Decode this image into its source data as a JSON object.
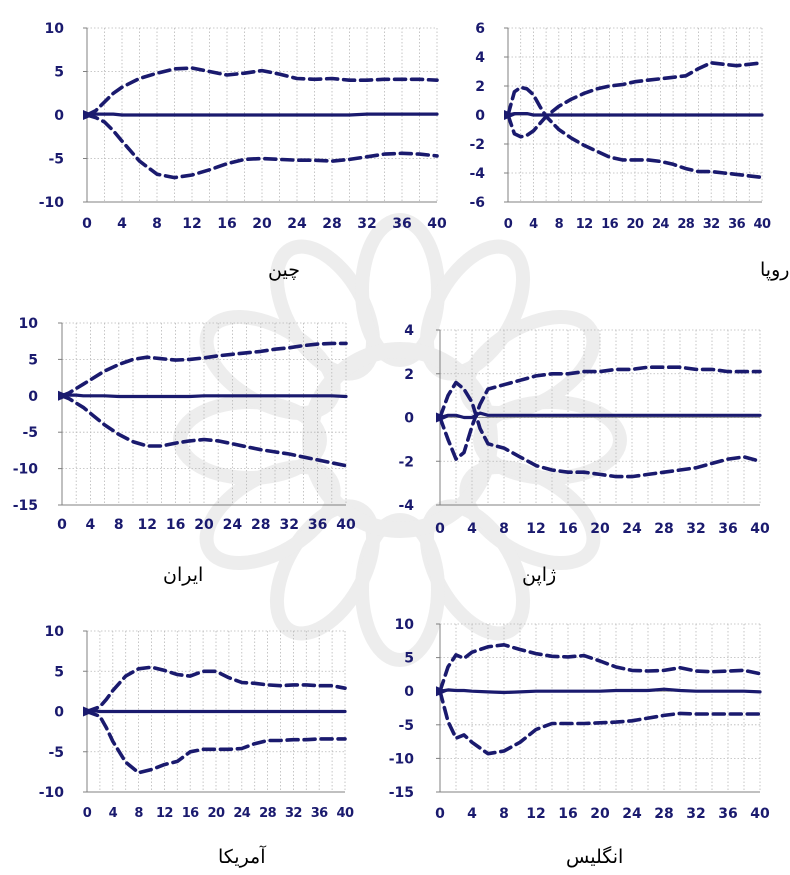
{
  "chart_data": [
    {
      "type": "line",
      "caption": "چین",
      "x": [
        0,
        1,
        2,
        3,
        4,
        6,
        8,
        10,
        12,
        14,
        16,
        18,
        20,
        22,
        24,
        26,
        28,
        30,
        32,
        34,
        36,
        38,
        40
      ],
      "xticks": [
        "0",
        "4",
        "8",
        "12",
        "16",
        "20",
        "24",
        "28",
        "32",
        "36",
        "40"
      ],
      "yticks": [
        "10",
        "5",
        "0",
        "-5",
        "-10"
      ],
      "ylim": [
        -10,
        10
      ],
      "xlim": [
        0,
        40
      ],
      "series": [
        {
          "style": "dashed",
          "values": [
            0,
            0.5,
            1.5,
            2.5,
            3.2,
            4.2,
            4.8,
            5.3,
            5.4,
            5.0,
            4.6,
            4.8,
            5.1,
            4.7,
            4.2,
            4.1,
            4.2,
            4.0,
            4.0,
            4.1,
            4.1,
            4.1,
            4.0
          ]
        },
        {
          "style": "solid",
          "values": [
            0,
            0.1,
            0.1,
            0.1,
            0.0,
            0.0,
            0.0,
            0.0,
            0.0,
            0.0,
            0.0,
            0.0,
            0.0,
            0.0,
            0.0,
            0.0,
            0.0,
            0.0,
            0.1,
            0.1,
            0.1,
            0.1,
            0.1
          ]
        },
        {
          "style": "dashed",
          "values": [
            0,
            -0.3,
            -0.8,
            -1.8,
            -3.0,
            -5.3,
            -6.8,
            -7.2,
            -6.9,
            -6.3,
            -5.6,
            -5.1,
            -5.0,
            -5.1,
            -5.2,
            -5.2,
            -5.3,
            -5.1,
            -4.8,
            -4.5,
            -4.4,
            -4.5,
            -4.7
          ]
        }
      ]
    },
    {
      "type": "line",
      "caption": "اتحادیه اروپا",
      "x": [
        0,
        1,
        2,
        3,
        4,
        5,
        6,
        8,
        10,
        12,
        14,
        16,
        18,
        20,
        22,
        24,
        26,
        28,
        30,
        32,
        34,
        36,
        38,
        40
      ],
      "xticks": [
        "0",
        "4",
        "8",
        "12",
        "16",
        "20",
        "24",
        "28",
        "32",
        "36",
        "40"
      ],
      "yticks": [
        "6",
        "4",
        "2",
        "0",
        "-2",
        "-4",
        "-6"
      ],
      "ylim": [
        -6,
        6
      ],
      "xlim": [
        0,
        40
      ],
      "series": [
        {
          "style": "dashed",
          "values": [
            0,
            1.6,
            1.9,
            1.8,
            1.4,
            0.6,
            -0.1,
            -1.0,
            -1.6,
            -2.1,
            -2.5,
            -2.9,
            -3.1,
            -3.1,
            -3.1,
            -3.2,
            -3.4,
            -3.7,
            -3.9,
            -3.9,
            -4.0,
            -4.1,
            -4.2,
            -4.3
          ]
        },
        {
          "style": "solid",
          "values": [
            0,
            0.1,
            0.1,
            0.1,
            0.0,
            0.0,
            0.0,
            0.0,
            0.0,
            0.0,
            0.0,
            0.0,
            0.0,
            0.0,
            0.0,
            0.0,
            0.0,
            0.0,
            0.0,
            0.0,
            0.0,
            0.0,
            0.0,
            0.0
          ]
        },
        {
          "style": "dashed",
          "values": [
            0,
            -1.3,
            -1.5,
            -1.4,
            -1.1,
            -0.6,
            -0.1,
            0.6,
            1.1,
            1.5,
            1.8,
            2.0,
            2.1,
            2.3,
            2.4,
            2.5,
            2.6,
            2.7,
            3.2,
            3.6,
            3.5,
            3.4,
            3.5,
            3.6
          ]
        }
      ]
    },
    {
      "type": "line",
      "caption": "ایران",
      "x": [
        0,
        1,
        2,
        3,
        4,
        6,
        8,
        10,
        12,
        14,
        16,
        18,
        20,
        22,
        24,
        26,
        28,
        30,
        32,
        34,
        36,
        38,
        40
      ],
      "xticks": [
        "0",
        "4",
        "8",
        "12",
        "16",
        "20",
        "24",
        "28",
        "32",
        "36",
        "40"
      ],
      "yticks": [
        "10",
        "5",
        "0",
        "-5",
        "-10",
        "-15"
      ],
      "ylim": [
        -15,
        10
      ],
      "xlim": [
        0,
        40
      ],
      "series": [
        {
          "style": "dashed",
          "values": [
            0,
            0.4,
            1.0,
            1.6,
            2.2,
            3.4,
            4.3,
            5.0,
            5.3,
            5.1,
            4.9,
            5.0,
            5.2,
            5.5,
            5.7,
            5.9,
            6.1,
            6.4,
            6.6,
            6.9,
            7.1,
            7.2,
            7.2
          ]
        },
        {
          "style": "solid",
          "values": [
            0,
            0.1,
            0.1,
            0.0,
            0.0,
            0.0,
            -0.1,
            -0.1,
            -0.1,
            -0.1,
            -0.1,
            -0.1,
            0.0,
            0.0,
            0.0,
            0.0,
            0.0,
            0.0,
            0.0,
            0.0,
            0.0,
            0.0,
            -0.1
          ]
        },
        {
          "style": "dashed",
          "values": [
            0,
            -0.4,
            -1.0,
            -1.6,
            -2.4,
            -4.0,
            -5.3,
            -6.3,
            -6.9,
            -6.9,
            -6.5,
            -6.2,
            -6.0,
            -6.2,
            -6.6,
            -7.0,
            -7.4,
            -7.7,
            -8.0,
            -8.4,
            -8.8,
            -9.2,
            -9.6
          ]
        }
      ]
    },
    {
      "type": "line",
      "caption": "ژاپن",
      "x": [
        0,
        1,
        2,
        3,
        4,
        5,
        6,
        8,
        10,
        12,
        14,
        16,
        18,
        20,
        22,
        24,
        26,
        28,
        30,
        32,
        34,
        36,
        38,
        40
      ],
      "xticks": [
        "0",
        "4",
        "8",
        "12",
        "16",
        "20",
        "24",
        "28",
        "32",
        "36",
        "40"
      ],
      "yticks": [
        "4",
        "2",
        "0",
        "-2",
        "-4"
      ],
      "ylim": [
        -4,
        4
      ],
      "xlim": [
        0,
        40
      ],
      "series": [
        {
          "style": "dashed",
          "values": [
            0,
            1.0,
            1.6,
            1.3,
            0.7,
            -0.5,
            -1.2,
            -1.4,
            -1.8,
            -2.2,
            -2.4,
            -2.5,
            -2.5,
            -2.6,
            -2.7,
            -2.7,
            -2.6,
            -2.5,
            -2.4,
            -2.3,
            -2.1,
            -1.9,
            -1.8,
            -2.0
          ]
        },
        {
          "style": "solid",
          "values": [
            0,
            0.1,
            0.1,
            0.0,
            0.0,
            0.2,
            0.1,
            0.1,
            0.1,
            0.1,
            0.1,
            0.1,
            0.1,
            0.1,
            0.1,
            0.1,
            0.1,
            0.1,
            0.1,
            0.1,
            0.1,
            0.1,
            0.1,
            0.1
          ]
        },
        {
          "style": "dashed",
          "values": [
            0,
            -1.0,
            -1.9,
            -1.6,
            -0.4,
            0.6,
            1.3,
            1.5,
            1.7,
            1.9,
            2.0,
            2.0,
            2.1,
            2.1,
            2.2,
            2.2,
            2.3,
            2.3,
            2.3,
            2.2,
            2.2,
            2.1,
            2.1,
            2.1
          ]
        }
      ]
    },
    {
      "type": "line",
      "caption": "آمریکا",
      "x": [
        0,
        1,
        2,
        3,
        4,
        6,
        8,
        10,
        12,
        14,
        16,
        18,
        20,
        22,
        24,
        26,
        28,
        30,
        32,
        34,
        36,
        38,
        40
      ],
      "xticks": [
        "0",
        "4",
        "8",
        "12",
        "16",
        "20",
        "24",
        "28",
        "32",
        "36",
        "40"
      ],
      "yticks": [
        "10",
        "5",
        "0",
        "-5",
        "-10"
      ],
      "ylim": [
        -10,
        10
      ],
      "xlim": [
        0,
        40
      ],
      "series": [
        {
          "style": "dashed",
          "values": [
            0,
            0.3,
            0.6,
            1.5,
            2.6,
            4.4,
            5.3,
            5.5,
            5.1,
            4.6,
            4.4,
            5.0,
            5.0,
            4.2,
            3.6,
            3.5,
            3.3,
            3.2,
            3.3,
            3.3,
            3.2,
            3.2,
            2.9
          ]
        },
        {
          "style": "solid",
          "values": [
            0,
            0.1,
            0.0,
            0.0,
            0.0,
            0.0,
            0.0,
            0.0,
            0.0,
            0.0,
            0.0,
            0.0,
            0.0,
            0.0,
            0.0,
            0.0,
            0.0,
            0.0,
            0.0,
            0.0,
            0.0,
            0.0,
            0.0
          ]
        },
        {
          "style": "dashed",
          "values": [
            0,
            -0.3,
            -0.6,
            -2.0,
            -3.7,
            -6.3,
            -7.6,
            -7.2,
            -6.6,
            -6.2,
            -5.0,
            -4.7,
            -4.7,
            -4.7,
            -4.6,
            -4.0,
            -3.6,
            -3.6,
            -3.5,
            -3.5,
            -3.4,
            -3.4,
            -3.4
          ]
        }
      ]
    },
    {
      "type": "line",
      "caption": "انگلیس",
      "x": [
        0,
        1,
        2,
        3,
        4,
        6,
        8,
        10,
        12,
        14,
        16,
        18,
        20,
        22,
        24,
        26,
        28,
        30,
        32,
        34,
        36,
        38,
        40
      ],
      "xticks": [
        "0",
        "4",
        "8",
        "12",
        "16",
        "20",
        "24",
        "28",
        "32",
        "36",
        "40"
      ],
      "yticks": [
        "10",
        "5",
        "0",
        "-5",
        "-10",
        "-15"
      ],
      "ylim": [
        -15,
        10
      ],
      "xlim": [
        0,
        40
      ],
      "series": [
        {
          "style": "dashed",
          "values": [
            0,
            3.6,
            5.4,
            4.9,
            5.8,
            6.6,
            6.9,
            6.2,
            5.6,
            5.2,
            5.1,
            5.3,
            4.5,
            3.6,
            3.1,
            3.0,
            3.1,
            3.5,
            3.0,
            2.9,
            3.0,
            3.1,
            2.6
          ]
        },
        {
          "style": "solid",
          "values": [
            0,
            0.2,
            0.1,
            0.1,
            0.0,
            -0.1,
            -0.2,
            -0.1,
            0.0,
            0.0,
            0.0,
            0.0,
            0.0,
            0.1,
            0.1,
            0.1,
            0.3,
            0.1,
            0.0,
            0.0,
            0.0,
            0.0,
            -0.1
          ]
        },
        {
          "style": "dashed",
          "values": [
            0,
            -4.5,
            -7.0,
            -6.5,
            -7.6,
            -9.3,
            -8.9,
            -7.6,
            -5.7,
            -4.8,
            -4.8,
            -4.8,
            -4.7,
            -4.6,
            -4.4,
            -4.0,
            -3.6,
            -3.3,
            -3.4,
            -3.4,
            -3.4,
            -3.4,
            -3.4
          ]
        }
      ]
    }
  ],
  "colors": {
    "line": "#1a1a6e",
    "grid": "#b8b8b8",
    "axis": "#808080",
    "caption": "#000000"
  }
}
